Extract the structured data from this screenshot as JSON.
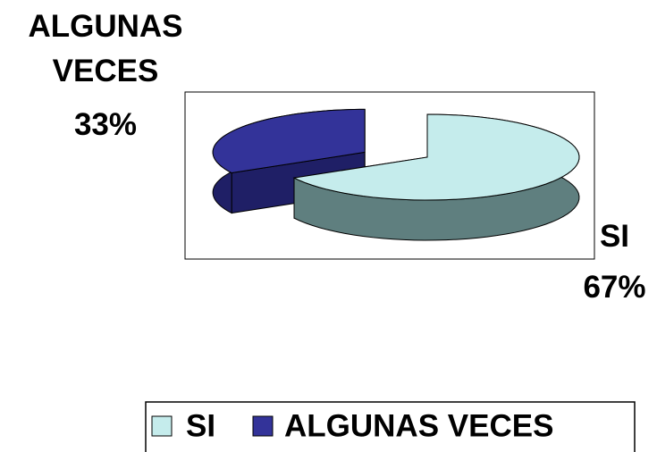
{
  "chart_data": {
    "type": "pie",
    "categories": [
      "SI",
      "ALGUNAS VECES"
    ],
    "values": [
      67,
      33
    ],
    "value_labels": [
      "67%",
      "33%"
    ],
    "colors": [
      "#c5ecec",
      "#333399"
    ],
    "side_colors": [
      "#5f7f7f",
      "#1f1f66"
    ],
    "legend": "bottom"
  }
}
